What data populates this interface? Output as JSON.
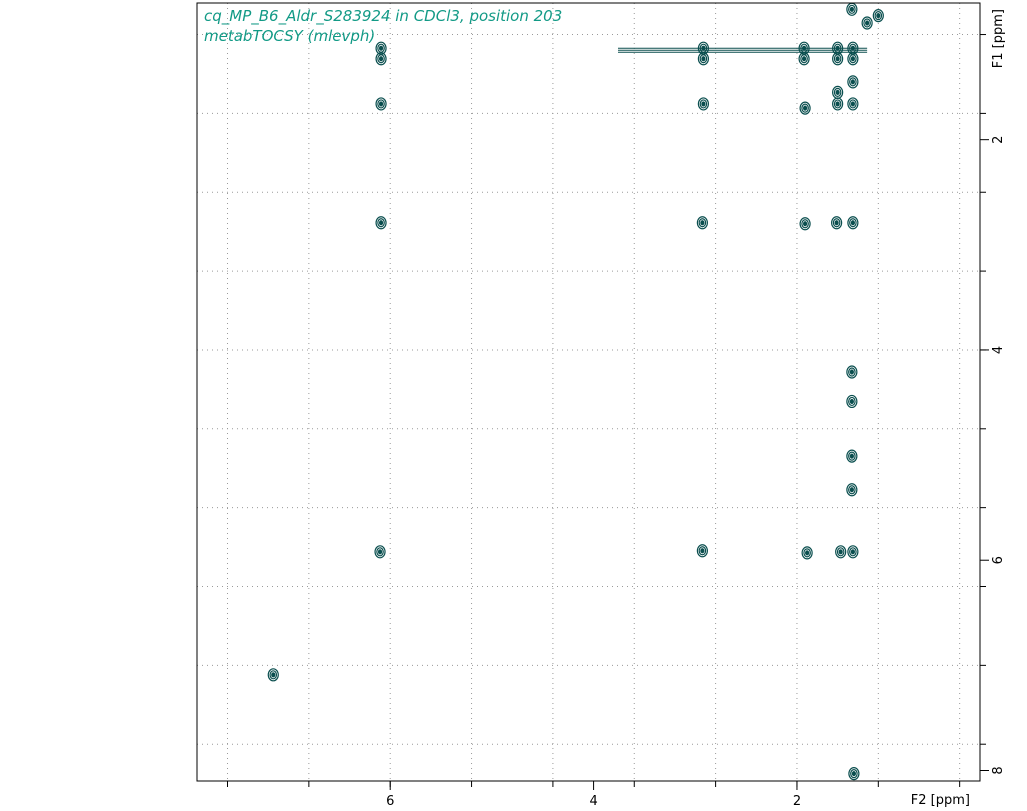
{
  "colors": {
    "contour": "#0b4f4f",
    "title": "#129a86",
    "frame": "#000000",
    "grid": "#9a9a9a"
  },
  "chart_data": {
    "type": "scatter",
    "title_lines": [
      "cq_MP_B6_Aldr_S283924 in CDCl3, position 203",
      "metabTOCSY (mlevph)"
    ],
    "xlabel": "F2 [ppm]",
    "ylabel": "F1 [ppm]",
    "xlim": [
      7.9,
      0.2
    ],
    "ylim": [
      0.7,
      8.1
    ],
    "x_ticks": [
      6,
      4,
      2
    ],
    "y_ticks": [
      2,
      4,
      6,
      8
    ],
    "grid": true,
    "axis_orientation": "reversed x, y increasing downward",
    "peaks": [
      {
        "x": 7.15,
        "y": 7.09
      },
      {
        "x": 6.09,
        "y": 1.13
      },
      {
        "x": 6.09,
        "y": 1.23
      },
      {
        "x": 6.09,
        "y": 1.66
      },
      {
        "x": 6.09,
        "y": 2.79
      },
      {
        "x": 6.1,
        "y": 5.92
      },
      {
        "x": 2.92,
        "y": 1.13
      },
      {
        "x": 2.92,
        "y": 1.23
      },
      {
        "x": 2.92,
        "y": 1.66
      },
      {
        "x": 2.93,
        "y": 2.79
      },
      {
        "x": 2.93,
        "y": 5.91
      },
      {
        "x": 1.93,
        "y": 1.13
      },
      {
        "x": 1.93,
        "y": 1.23
      },
      {
        "x": 1.92,
        "y": 1.7
      },
      {
        "x": 1.92,
        "y": 2.8
      },
      {
        "x": 1.9,
        "y": 5.93
      },
      {
        "x": 1.6,
        "y": 1.13
      },
      {
        "x": 1.6,
        "y": 1.23
      },
      {
        "x": 1.6,
        "y": 1.66
      },
      {
        "x": 1.61,
        "y": 2.79
      },
      {
        "x": 1.57,
        "y": 5.92
      },
      {
        "x": 1.45,
        "y": 1.13
      },
      {
        "x": 1.45,
        "y": 1.23
      },
      {
        "x": 1.45,
        "y": 1.66
      },
      {
        "x": 1.45,
        "y": 2.79
      },
      {
        "x": 1.45,
        "y": 5.92
      },
      {
        "x": 1.46,
        "y": 4.21
      },
      {
        "x": 1.46,
        "y": 4.49
      },
      {
        "x": 1.46,
        "y": 5.01
      },
      {
        "x": 1.46,
        "y": 5.33
      },
      {
        "x": 1.44,
        "y": 8.03
      },
      {
        "x": 1.46,
        "y": 0.76
      },
      {
        "x": 1.31,
        "y": 0.89
      },
      {
        "x": 1.2,
        "y": 0.82
      },
      {
        "x": 1.6,
        "y": 1.55
      },
      {
        "x": 1.45,
        "y": 1.45
      }
    ],
    "diagonal_ridge": {
      "y": 1.15,
      "x_from": 3.76,
      "x_to": 1.31
    }
  }
}
